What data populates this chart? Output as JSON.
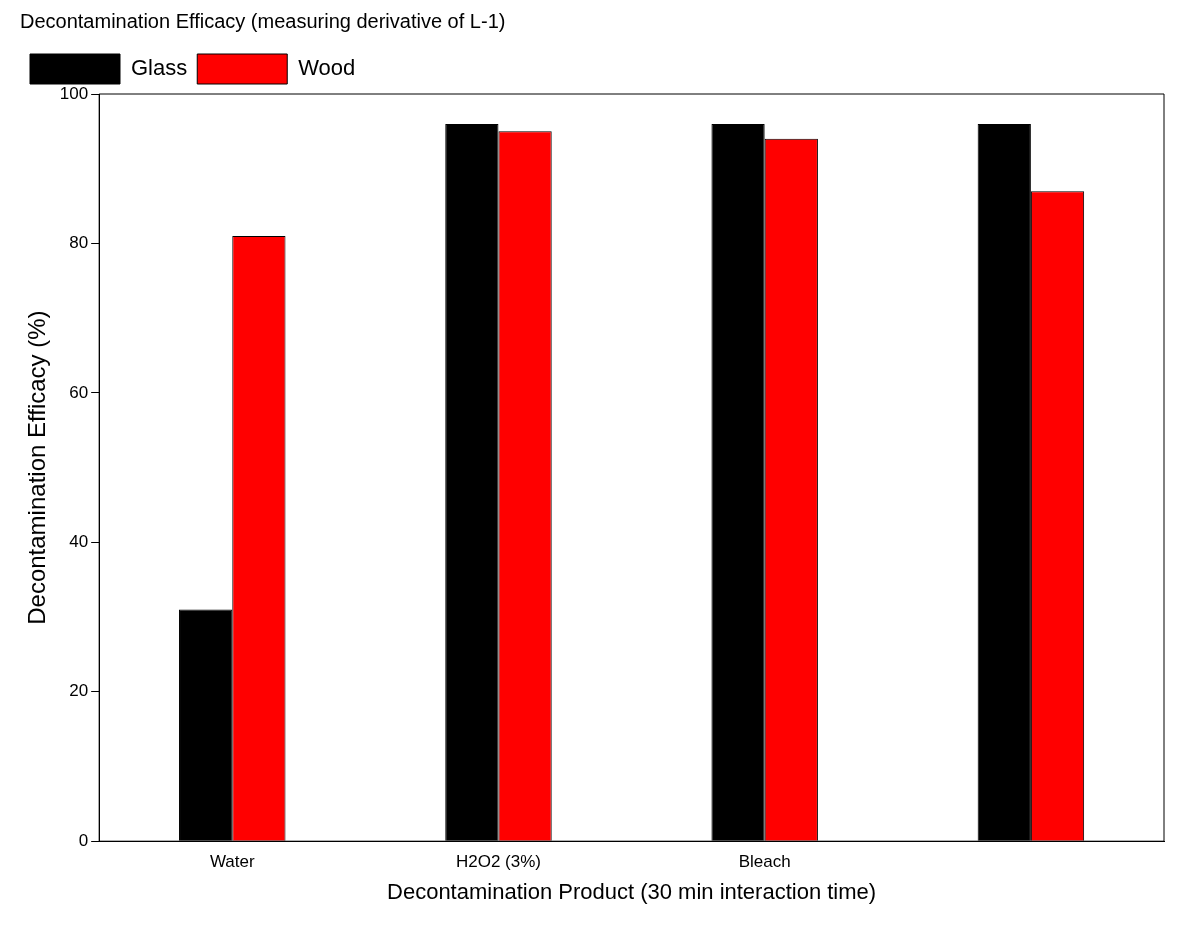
{
  "chart_data": {
    "type": "bar",
    "title": "Decontamination Efficacy (measuring derivative of L-1)",
    "xlabel": "Decontamination Product (30 min interaction time)",
    "ylabel": "Decontamination Efficacy (%)",
    "categories": [
      "Water",
      "H2O2 (3%)",
      "Bleach",
      null
    ],
    "series": [
      {
        "name": "Glass",
        "color": "#000000",
        "values": [
          31,
          96,
          96,
          96
        ]
      },
      {
        "name": "Wood",
        "color": "#ff0000",
        "values": [
          81,
          95,
          94,
          87
        ]
      }
    ],
    "ylim": [
      0,
      100
    ],
    "yticks": [
      0,
      20,
      40,
      60,
      80,
      100
    ],
    "grid": false,
    "legend": "top left"
  }
}
